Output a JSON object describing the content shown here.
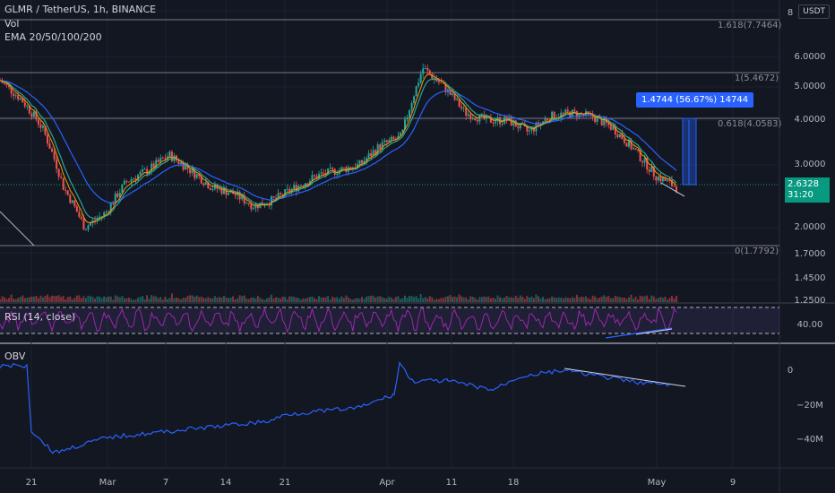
{
  "header": {
    "symbol": "GLMR / TetherUS, 1h, BINANCE",
    "indicator_vol": "Vol",
    "indicator_ema": "EMA 20/50/100/200"
  },
  "currency_badge": "USDT",
  "price_axis": [
    "8",
    "6.0000",
    "5.0000",
    "4.0000",
    "3.0000",
    "2.0000",
    "1.7000",
    "1.4500",
    "1.2500"
  ],
  "current_price": {
    "value": "2.6328",
    "countdown": "31:20",
    "color": "#089981"
  },
  "fib_levels": [
    {
      "label": "1.618(7.7464)"
    },
    {
      "label": "1(5.4672)"
    },
    {
      "label": "0.618(4.0583)"
    },
    {
      "label": "0(1.7792)"
    }
  ],
  "measure_label": "1.4744 (56.67%) 14744",
  "rsi": {
    "title": "RSI (14, close)",
    "axis_value": "40.00"
  },
  "obv": {
    "title": "OBV",
    "axis": [
      "0",
      "−20M",
      "−40M"
    ]
  },
  "date_axis": [
    "21",
    "Mar",
    "7",
    "14",
    "21",
    "Apr",
    "11",
    "18",
    "May",
    "9"
  ],
  "colors": {
    "background": "#131722",
    "bull": "#26a69a",
    "bear": "#ef5350",
    "ema20": "#26a69a",
    "ema50": "#2962ff",
    "rsi": "#9c27b0",
    "obv": "#2962ff",
    "measure": "#2962ff"
  },
  "chart_data": {
    "type": "line",
    "series": [
      {
        "values": [
          5.2,
          4.6,
          3.8,
          2.6,
          2.0,
          2.2,
          2.7,
          2.9,
          3.2,
          2.9,
          2.6,
          2.5,
          2.3,
          2.4,
          2.6,
          2.8,
          2.9,
          3.0,
          3.4,
          3.6,
          5.6,
          5.0,
          4.2,
          4.0,
          4.0,
          3.7,
          4.1,
          4.2,
          4.1,
          3.8,
          3.3,
          2.8,
          2.6
        ]
      }
    ],
    "ylim": [
      1.25,
      8
    ]
  }
}
